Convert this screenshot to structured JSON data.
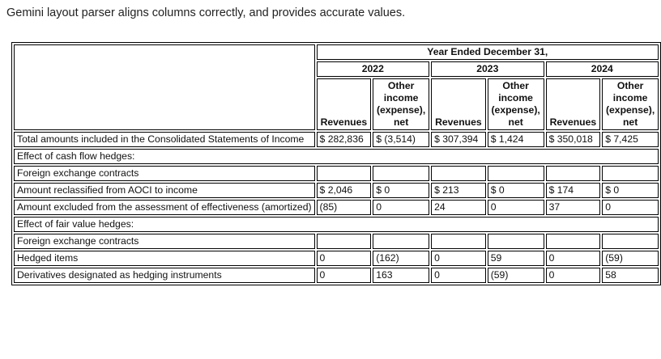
{
  "caption": "Gemini layout parser aligns columns correctly, and provides accurate values.",
  "header": {
    "period": "Year Ended December 31,",
    "years": [
      "2022",
      "2023",
      "2024"
    ],
    "col_revenues": "Revenues",
    "col_other": "Other income (expense), net"
  },
  "rows": {
    "total": {
      "label": "Total amounts included in the Consolidated Statements of Income",
      "values": [
        "$ 282,836",
        "$ (3,514)",
        "$ 307,394",
        "$ 1,424",
        "$ 350,018",
        "$ 7,425"
      ]
    },
    "cfh": {
      "label": "Effect of cash flow hedges:"
    },
    "fx1": {
      "label": "Foreign exchange contracts"
    },
    "aoci": {
      "label": "Amount reclassified from AOCI to income",
      "values": [
        "$ 2,046",
        "$ 0",
        "$ 213",
        "$ 0",
        "$ 174",
        "$ 0"
      ]
    },
    "excl": {
      "label": "Amount excluded from the assessment of effectiveness (amortized)",
      "values": [
        "(85)",
        "0",
        "24",
        "0",
        "37",
        "0"
      ]
    },
    "fvh": {
      "label": "Effect of fair value hedges:"
    },
    "fx2": {
      "label": "Foreign exchange contracts"
    },
    "hedged": {
      "label": "Hedged items",
      "values": [
        "0",
        "(162)",
        "0",
        "59",
        "0",
        "(59)"
      ]
    },
    "deriv": {
      "label": "Derivatives designated as hedging instruments",
      "values": [
        "0",
        "163",
        "0",
        "(59)",
        "0",
        "58"
      ]
    }
  }
}
